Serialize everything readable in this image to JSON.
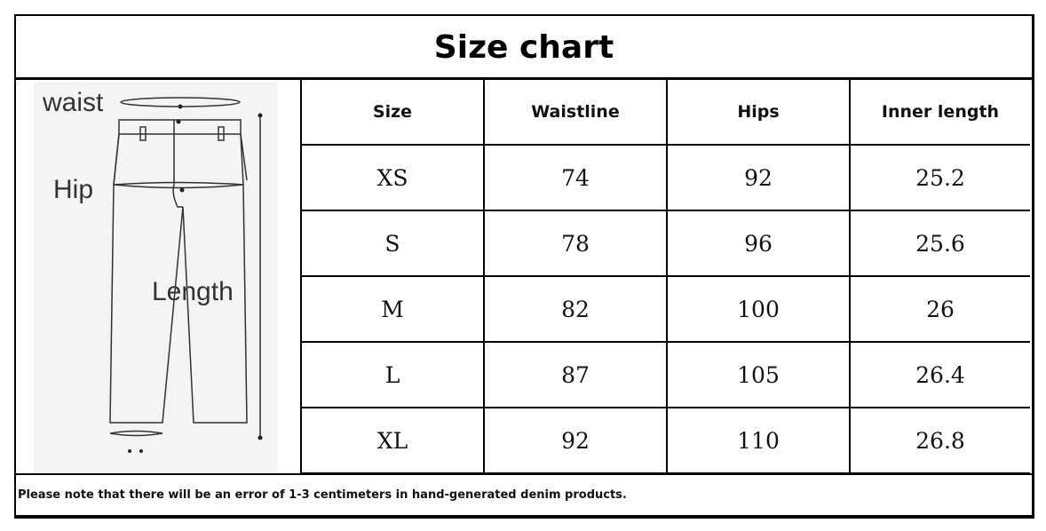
{
  "title": "Size chart",
  "illustration": {
    "labels": {
      "waist": "waist",
      "hip": "Hip",
      "length": "Length"
    },
    "icon": "pants-diagram"
  },
  "table": {
    "headers": [
      "Size",
      "Waistline",
      "Hips",
      "Inner length"
    ],
    "rows": [
      [
        "XS",
        "74",
        "92",
        "25.2"
      ],
      [
        "S",
        "78",
        "96",
        "25.6"
      ],
      [
        "M",
        "82",
        "100",
        "26"
      ],
      [
        "L",
        "87",
        "105",
        "26.4"
      ],
      [
        "XL",
        "92",
        "110",
        "26.8"
      ]
    ]
  },
  "note": "Please note that there will be an error of 1-3 centimeters in hand-generated denim products."
}
